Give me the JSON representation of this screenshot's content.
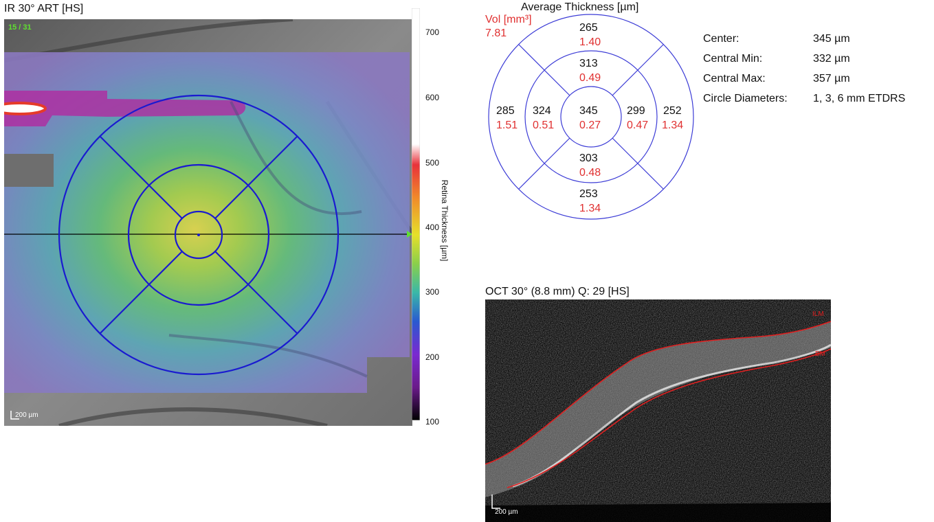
{
  "ir": {
    "title": "IR 30° ART [HS]",
    "slice_counter": "15 / 31",
    "scale_label": "200 µm"
  },
  "colorbar": {
    "label": "Retina  Thickness [µm]",
    "ticks": [
      "700",
      "600",
      "500",
      "400",
      "300",
      "200",
      "100"
    ]
  },
  "etdrs": {
    "title": "Average Thickness [µm]",
    "vol_label": "Vol [mm³]",
    "total_vol": "7.81",
    "sectors": {
      "center": {
        "thickness": "345",
        "volume": "0.27"
      },
      "inner_superior": {
        "thickness": "313",
        "volume": "0.49"
      },
      "inner_inferior": {
        "thickness": "303",
        "volume": "0.48"
      },
      "inner_temporal": {
        "thickness": "324",
        "volume": "0.51"
      },
      "inner_nasal": {
        "thickness": "299",
        "volume": "0.47"
      },
      "outer_superior": {
        "thickness": "265",
        "volume": "1.40"
      },
      "outer_inferior": {
        "thickness": "253",
        "volume": "1.34"
      },
      "outer_temporal": {
        "thickness": "285",
        "volume": "1.51"
      },
      "outer_nasal": {
        "thickness": "252",
        "volume": "1.34"
      }
    },
    "colors": {
      "circle": "#3b3bd6",
      "volume": "#e03030"
    }
  },
  "stats": [
    {
      "label": "Center:",
      "value": "345 µm"
    },
    {
      "label": "Central Min:",
      "value": "332 µm"
    },
    {
      "label": "Central Max:",
      "value": "357 µm"
    },
    {
      "label": "Circle Diameters:",
      "value": "1, 3, 6 mm ETDRS"
    }
  ],
  "oct": {
    "title": "OCT 30° (8.8 mm) Q: 29 [HS]",
    "ilm_label": "ILM",
    "bm_label": "BM",
    "scale_label": "200 µm"
  }
}
